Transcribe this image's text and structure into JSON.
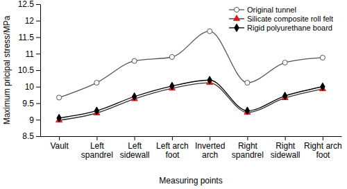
{
  "chart_data": {
    "type": "line",
    "x_label": "Measuring points",
    "y_label": "Maximum pricipal stress/MPa",
    "categories": [
      "Vault",
      "Left spandrel",
      "Left sidewall",
      "Left arch foot",
      "Inverted arch",
      "Right spandrel",
      "Right sidewall",
      "Right arch foot"
    ],
    "series": [
      {
        "name": "Original tunnel",
        "color": "#555555",
        "marker": "circle",
        "line_style": "smooth",
        "values": [
          9.67,
          10.12,
          10.78,
          10.9,
          11.68,
          10.12,
          10.73,
          10.88
        ]
      },
      {
        "name": "Silicate composite roll felt",
        "color": "#e31a1c",
        "marker": "triangle",
        "line_style": "smooth",
        "values": [
          8.98,
          9.2,
          9.63,
          9.95,
          10.12,
          9.22,
          9.66,
          9.93
        ]
      },
      {
        "name": "Rigid polyurethane board",
        "color": "#000000",
        "marker": "diamond",
        "line_style": "smooth",
        "values": [
          9.05,
          9.27,
          9.7,
          10.02,
          10.2,
          9.27,
          9.72,
          10.0
        ]
      }
    ],
    "ylim": [
      8.5,
      12.5
    ],
    "yticks": [
      8.5,
      9,
      9.5,
      10,
      10.5,
      11,
      11.5,
      12,
      12.5
    ],
    "grid": false,
    "legend": "upper right"
  }
}
